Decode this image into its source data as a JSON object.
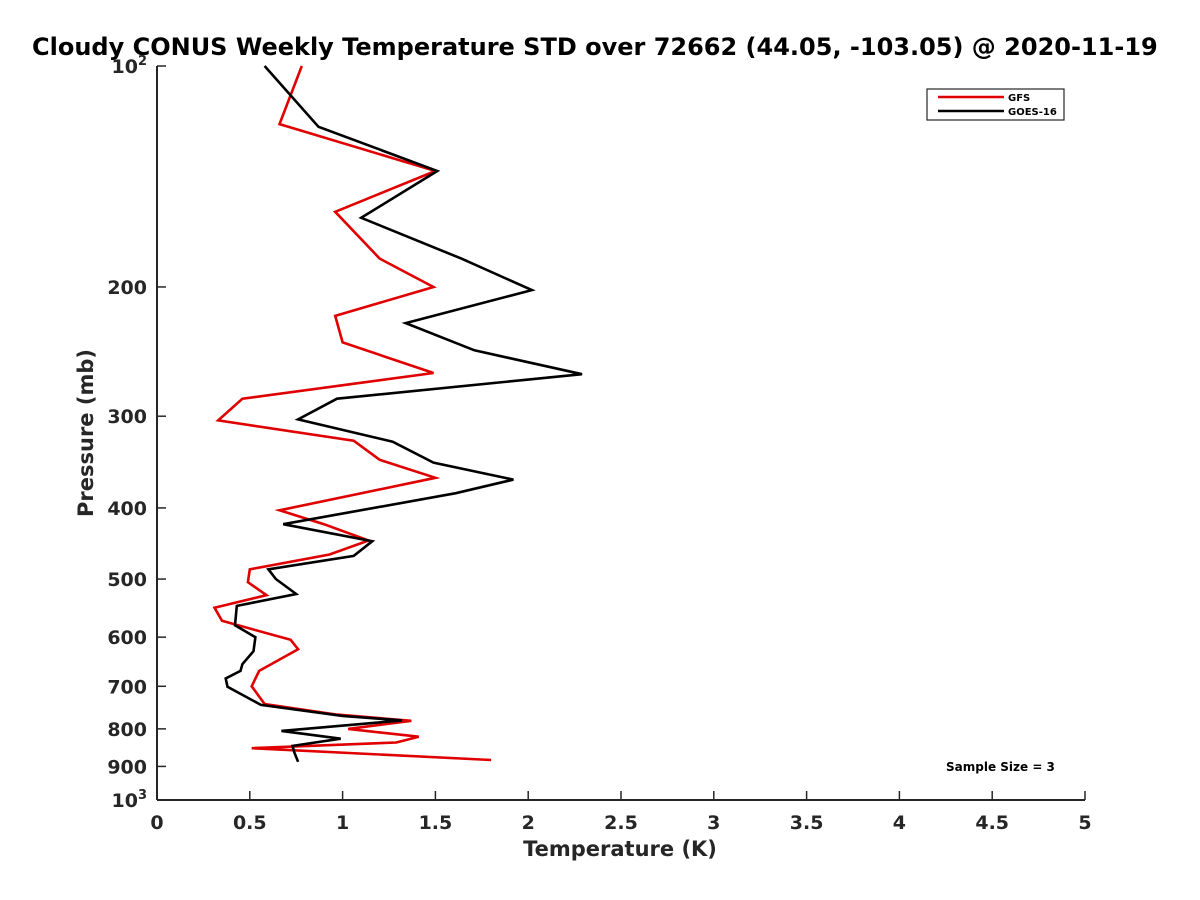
{
  "chart_data": {
    "type": "line",
    "title": "Cloudy CONUS Weekly Temperature STD over 72662 (44.05, -103.05) @ 2020-11-19",
    "xlabel": "Temperature (K)",
    "ylabel": "Pressure (mb)",
    "xlim": [
      0,
      5
    ],
    "ylim": [
      1000,
      100
    ],
    "yscale": "log",
    "y_reversed": true,
    "grid": false,
    "legend_position": "top-right",
    "x_ticks": [
      {
        "value": 0,
        "label": "0"
      },
      {
        "value": 0.5,
        "label": "0.5"
      },
      {
        "value": 1,
        "label": "1"
      },
      {
        "value": 1.5,
        "label": "1.5"
      },
      {
        "value": 2,
        "label": "2"
      },
      {
        "value": 2.5,
        "label": "2.5"
      },
      {
        "value": 3,
        "label": "3"
      },
      {
        "value": 3.5,
        "label": "3.5"
      },
      {
        "value": 4,
        "label": "4"
      },
      {
        "value": 4.5,
        "label": "4.5"
      },
      {
        "value": 5,
        "label": "5"
      }
    ],
    "y_ticks": [
      {
        "value": 100,
        "base": "10",
        "exp": "2"
      },
      {
        "value": 200,
        "label": "200"
      },
      {
        "value": 300,
        "label": "300"
      },
      {
        "value": 400,
        "label": "400"
      },
      {
        "value": 500,
        "label": "500"
      },
      {
        "value": 600,
        "label": "600"
      },
      {
        "value": 700,
        "label": "700"
      },
      {
        "value": 800,
        "label": "800"
      },
      {
        "value": 900,
        "label": "900"
      },
      {
        "value": 1000,
        "base": "10",
        "exp": "3"
      }
    ],
    "series": [
      {
        "name": "GFS",
        "color": "#e00000",
        "points": [
          {
            "x": 0.78,
            "y": 100
          },
          {
            "x": 0.66,
            "y": 120
          },
          {
            "x": 1.5,
            "y": 139
          },
          {
            "x": 0.96,
            "y": 158
          },
          {
            "x": 1.2,
            "y": 183
          },
          {
            "x": 1.49,
            "y": 200
          },
          {
            "x": 0.96,
            "y": 219
          },
          {
            "x": 1.0,
            "y": 238
          },
          {
            "x": 1.49,
            "y": 262
          },
          {
            "x": 0.46,
            "y": 284
          },
          {
            "x": 0.33,
            "y": 304
          },
          {
            "x": 1.06,
            "y": 324
          },
          {
            "x": 1.2,
            "y": 344
          },
          {
            "x": 1.5,
            "y": 364
          },
          {
            "x": 0.66,
            "y": 403
          },
          {
            "x": 0.9,
            "y": 421
          },
          {
            "x": 1.14,
            "y": 443
          },
          {
            "x": 0.93,
            "y": 463
          },
          {
            "x": 0.5,
            "y": 485
          },
          {
            "x": 0.49,
            "y": 505
          },
          {
            "x": 0.59,
            "y": 526
          },
          {
            "x": 0.31,
            "y": 547
          },
          {
            "x": 0.35,
            "y": 570
          },
          {
            "x": 0.72,
            "y": 605
          },
          {
            "x": 0.76,
            "y": 623
          },
          {
            "x": 0.55,
            "y": 667
          },
          {
            "x": 0.51,
            "y": 700
          },
          {
            "x": 0.58,
            "y": 740
          },
          {
            "x": 0.97,
            "y": 765
          },
          {
            "x": 1.37,
            "y": 780
          },
          {
            "x": 1.03,
            "y": 800
          },
          {
            "x": 1.41,
            "y": 820
          },
          {
            "x": 1.29,
            "y": 835
          },
          {
            "x": 0.51,
            "y": 850
          },
          {
            "x": 1.8,
            "y": 882
          }
        ]
      },
      {
        "name": "GOES-16",
        "color": "#000000",
        "points": [
          {
            "x": 0.58,
            "y": 100
          },
          {
            "x": 0.87,
            "y": 121
          },
          {
            "x": 1.51,
            "y": 139
          },
          {
            "x": 1.1,
            "y": 161
          },
          {
            "x": 1.64,
            "y": 183
          },
          {
            "x": 2.02,
            "y": 202
          },
          {
            "x": 1.34,
            "y": 224
          },
          {
            "x": 1.71,
            "y": 244
          },
          {
            "x": 2.29,
            "y": 263
          },
          {
            "x": 0.97,
            "y": 284
          },
          {
            "x": 0.76,
            "y": 303
          },
          {
            "x": 1.27,
            "y": 325
          },
          {
            "x": 1.49,
            "y": 347
          },
          {
            "x": 1.92,
            "y": 366
          },
          {
            "x": 1.61,
            "y": 382
          },
          {
            "x": 0.68,
            "y": 421
          },
          {
            "x": 1.16,
            "y": 444
          },
          {
            "x": 1.06,
            "y": 465
          },
          {
            "x": 0.6,
            "y": 485
          },
          {
            "x": 0.64,
            "y": 500
          },
          {
            "x": 0.75,
            "y": 524
          },
          {
            "x": 0.43,
            "y": 544
          },
          {
            "x": 0.42,
            "y": 578
          },
          {
            "x": 0.53,
            "y": 600
          },
          {
            "x": 0.52,
            "y": 627
          },
          {
            "x": 0.46,
            "y": 653
          },
          {
            "x": 0.45,
            "y": 667
          },
          {
            "x": 0.37,
            "y": 683
          },
          {
            "x": 0.38,
            "y": 701
          },
          {
            "x": 0.56,
            "y": 742
          },
          {
            "x": 1.0,
            "y": 768
          },
          {
            "x": 1.32,
            "y": 779
          },
          {
            "x": 0.67,
            "y": 805
          },
          {
            "x": 0.99,
            "y": 825
          },
          {
            "x": 0.73,
            "y": 844
          },
          {
            "x": 0.74,
            "y": 861
          },
          {
            "x": 0.76,
            "y": 887
          }
        ]
      }
    ],
    "annotation": "Sample Size = 3"
  }
}
